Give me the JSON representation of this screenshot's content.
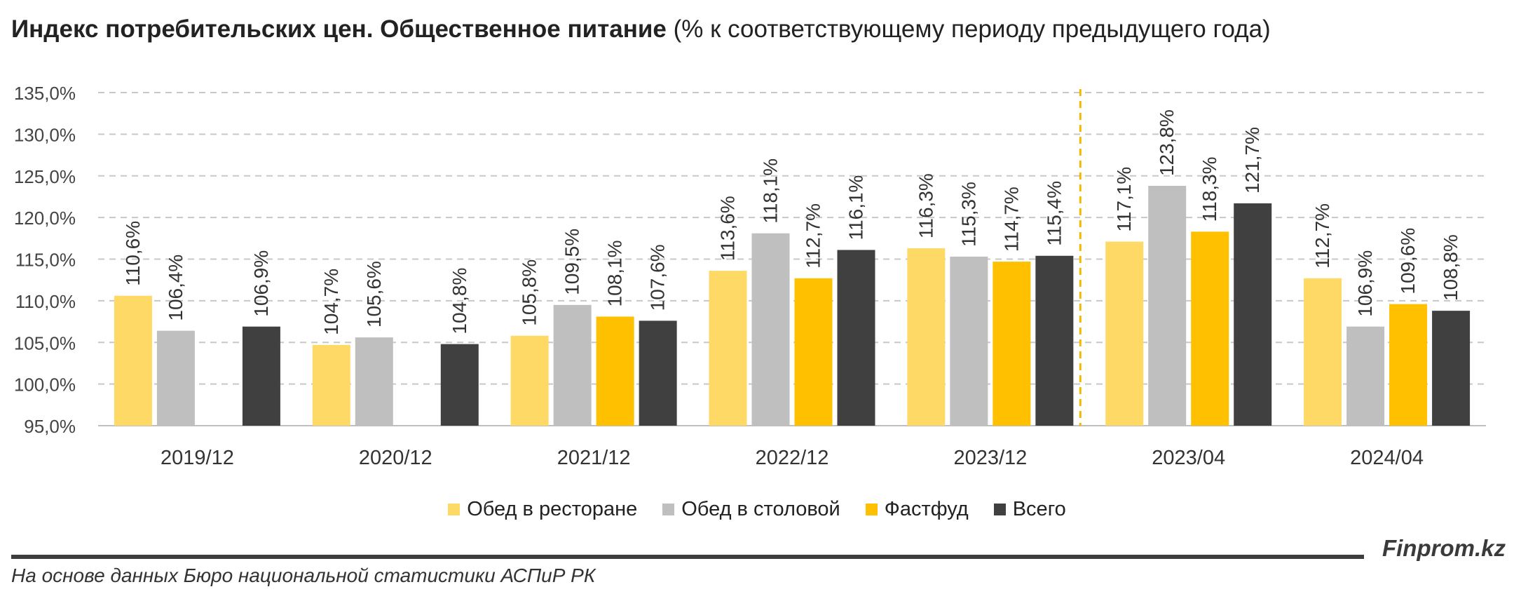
{
  "title": {
    "bold": "Индекс потребительских цен. Общественное питание",
    "rest": " (% к соответствующему периоду предыдущего года)"
  },
  "chart_data": {
    "type": "bar",
    "categories": [
      "2019/12",
      "2020/12",
      "2021/12",
      "2022/12",
      "2023/12",
      "2023/04",
      "2024/04"
    ],
    "ylim": [
      95,
      135
    ],
    "yticks": [
      "95,0%",
      "100,0%",
      "105,0%",
      "110,0%",
      "115,0%",
      "120,0%",
      "125,0%",
      "130,0%",
      "135,0%"
    ],
    "grid": true,
    "divider_after_category": "2023/12",
    "legend_position": "bottom",
    "series": [
      {
        "name": "Обед в ресторане",
        "color": "#FFD966",
        "values": [
          110.6,
          104.7,
          105.8,
          113.6,
          116.3,
          117.1,
          112.7
        ],
        "labels": [
          "110,6%",
          "104,7%",
          "105,8%",
          "113,6%",
          "116,3%",
          "117,1%",
          "112,7%"
        ]
      },
      {
        "name": "Обед в столовой",
        "color": "#BFBFBF",
        "values": [
          106.4,
          105.6,
          109.5,
          118.1,
          115.3,
          123.8,
          106.9
        ],
        "labels": [
          "106,4%",
          "105,6%",
          "109,5%",
          "118,1%",
          "115,3%",
          "123,8%",
          "106,9%"
        ]
      },
      {
        "name": "Фастфуд",
        "color": "#FFC000",
        "values": [
          null,
          null,
          108.1,
          112.7,
          114.7,
          118.3,
          109.6
        ],
        "labels": [
          "",
          "",
          "108,1%",
          "112,7%",
          "114,7%",
          "118,3%",
          "109,6%"
        ]
      },
      {
        "name": "Всего",
        "color": "#404040",
        "values": [
          106.9,
          104.8,
          107.6,
          116.1,
          115.4,
          121.7,
          108.8
        ],
        "labels": [
          "106,9%",
          "104,8%",
          "107,6%",
          "116,1%",
          "115,4%",
          "121,7%",
          "108,8%"
        ]
      }
    ]
  },
  "footer": {
    "brand": "Finprom.kz",
    "source": "На основе данных Бюро национальной статистики АСПиР РК"
  }
}
